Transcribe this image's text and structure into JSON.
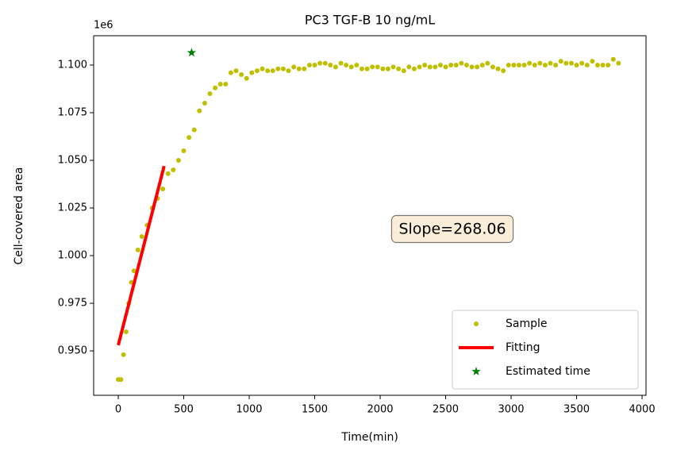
{
  "chart_data": {
    "type": "scatter",
    "title": "PC3 TGF-B 10 ng/mL",
    "xlabel": "Time(min)",
    "ylabel": "Cell-covered area",
    "y_offset_label": "1e6",
    "annotation": "Slope=268.06",
    "xlim": [
      -188,
      4030
    ],
    "ylim": [
      0.9267,
      1.1154
    ],
    "xticks": [
      0,
      500,
      1000,
      1500,
      2000,
      2500,
      3000,
      3500,
      4000
    ],
    "yticks": [
      {
        "value": 0.95,
        "label": "0.950"
      },
      {
        "value": 0.975,
        "label": "0.975"
      },
      {
        "value": 1.0,
        "label": "1.000"
      },
      {
        "value": 1.025,
        "label": "1.025"
      },
      {
        "value": 1.05,
        "label": "1.050"
      },
      {
        "value": 1.075,
        "label": "1.075"
      },
      {
        "value": 1.1,
        "label": "1.100"
      }
    ],
    "legend": "lower right",
    "series": [
      {
        "name": "Sample",
        "color": "#bfbf00",
        "marker": "dot",
        "x": [
          0,
          20,
          40,
          60,
          80,
          100,
          120,
          150,
          180,
          220,
          260,
          300,
          340,
          380,
          420,
          460,
          500,
          540,
          580,
          620,
          660,
          700,
          740,
          780,
          820,
          860,
          900,
          940,
          980,
          1020,
          1060,
          1100,
          1140,
          1180,
          1220,
          1260,
          1300,
          1340,
          1380,
          1420,
          1460,
          1500,
          1540,
          1580,
          1620,
          1660,
          1700,
          1740,
          1780,
          1820,
          1860,
          1900,
          1940,
          1980,
          2020,
          2060,
          2100,
          2140,
          2180,
          2220,
          2260,
          2300,
          2340,
          2380,
          2420,
          2460,
          2500,
          2540,
          2580,
          2620,
          2660,
          2700,
          2740,
          2780,
          2820,
          2860,
          2900,
          2940,
          2980,
          3020,
          3060,
          3100,
          3140,
          3180,
          3220,
          3260,
          3300,
          3340,
          3380,
          3420,
          3460,
          3500,
          3540,
          3580,
          3620,
          3660,
          3700,
          3740,
          3780,
          3820
        ],
        "values": [
          0.935,
          0.935,
          0.948,
          0.96,
          0.975,
          0.986,
          0.992,
          1.003,
          1.01,
          1.016,
          1.025,
          1.03,
          1.035,
          1.043,
          1.045,
          1.05,
          1.055,
          1.062,
          1.066,
          1.076,
          1.08,
          1.085,
          1.088,
          1.09,
          1.09,
          1.096,
          1.097,
          1.095,
          1.093,
          1.096,
          1.097,
          1.098,
          1.097,
          1.097,
          1.098,
          1.098,
          1.097,
          1.099,
          1.098,
          1.098,
          1.1,
          1.1,
          1.101,
          1.101,
          1.1,
          1.099,
          1.101,
          1.1,
          1.099,
          1.1,
          1.098,
          1.098,
          1.099,
          1.099,
          1.098,
          1.098,
          1.099,
          1.098,
          1.097,
          1.099,
          1.098,
          1.099,
          1.1,
          1.099,
          1.099,
          1.1,
          1.099,
          1.1,
          1.1,
          1.101,
          1.1,
          1.099,
          1.099,
          1.1,
          1.101,
          1.099,
          1.098,
          1.097,
          1.1,
          1.1,
          1.1,
          1.1,
          1.101,
          1.1,
          1.101,
          1.1,
          1.101,
          1.1,
          1.102,
          1.101,
          1.101,
          1.1,
          1.101,
          1.1,
          1.102,
          1.1,
          1.1,
          1.1,
          1.103,
          1.101
        ]
      },
      {
        "name": "Fitting",
        "color": "#ff0000",
        "marker": "line",
        "x": [
          0,
          350
        ],
        "values": [
          0.953,
          1.047
        ]
      },
      {
        "name": "Estimated time",
        "color": "#008000",
        "marker": "star",
        "x": [
          560
        ],
        "values": [
          1.1065
        ]
      }
    ]
  }
}
